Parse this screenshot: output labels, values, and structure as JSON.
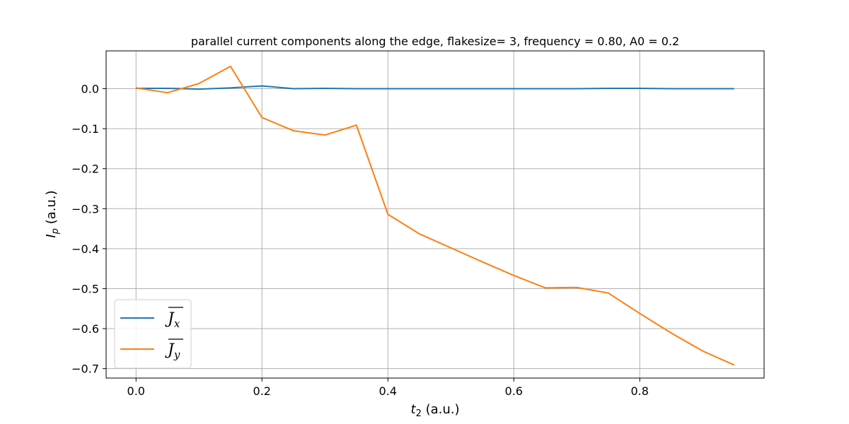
{
  "chart_data": {
    "type": "line",
    "title": "parallel current components along the edge, flakesize= 3, frequency = 0.80, A0 = 0.2",
    "xlabel": {
      "main": "t",
      "sub": "2",
      "unit": " (a.u.)"
    },
    "ylabel": {
      "main": "I",
      "sub": "p",
      "unit": " (a.u.)"
    },
    "xlim": [
      -0.0475,
      0.9975
    ],
    "ylim": [
      -0.7236,
      0.0946
    ],
    "xticks": [
      0.0,
      0.2,
      0.4,
      0.6,
      0.8
    ],
    "xtick_labels": [
      "0.0",
      "0.2",
      "0.4",
      "0.6",
      "0.8"
    ],
    "yticks": [
      0.0,
      -0.1,
      -0.2,
      -0.3,
      -0.4,
      -0.5,
      -0.6,
      -0.7
    ],
    "ytick_labels": [
      "0.0",
      "−0.1",
      "−0.2",
      "−0.3",
      "−0.4",
      "−0.5",
      "−0.6",
      "−0.7"
    ],
    "grid": true,
    "legend_position": "lower-left",
    "x": [
      0.0,
      0.05,
      0.1,
      0.15,
      0.2,
      0.25,
      0.3,
      0.35,
      0.4,
      0.45,
      0.5,
      0.55,
      0.6,
      0.65,
      0.7,
      0.75,
      0.8,
      0.85,
      0.9,
      0.95
    ],
    "series": [
      {
        "name": "J̄x",
        "legend_main": "J",
        "legend_sub": "x",
        "color": "#1f77b4",
        "values": [
          0.001,
          0.001,
          -0.001,
          0.002,
          0.007,
          0.0,
          0.001,
          0.0,
          0.0,
          0.0,
          0.0,
          0.0,
          0.0,
          0.0,
          0.0,
          0.001,
          0.001,
          0.0,
          0.0,
          0.0
        ]
      },
      {
        "name": "J̄y",
        "legend_main": "J",
        "legend_sub": "y",
        "color": "#ff7f0e",
        "values": [
          0.002,
          -0.01,
          0.013,
          0.056,
          -0.072,
          -0.105,
          -0.116,
          -0.091,
          -0.314,
          -0.363,
          -0.398,
          -0.433,
          -0.467,
          -0.498,
          -0.497,
          -0.511,
          -0.562,
          -0.611,
          -0.656,
          -0.691
        ]
      }
    ]
  }
}
